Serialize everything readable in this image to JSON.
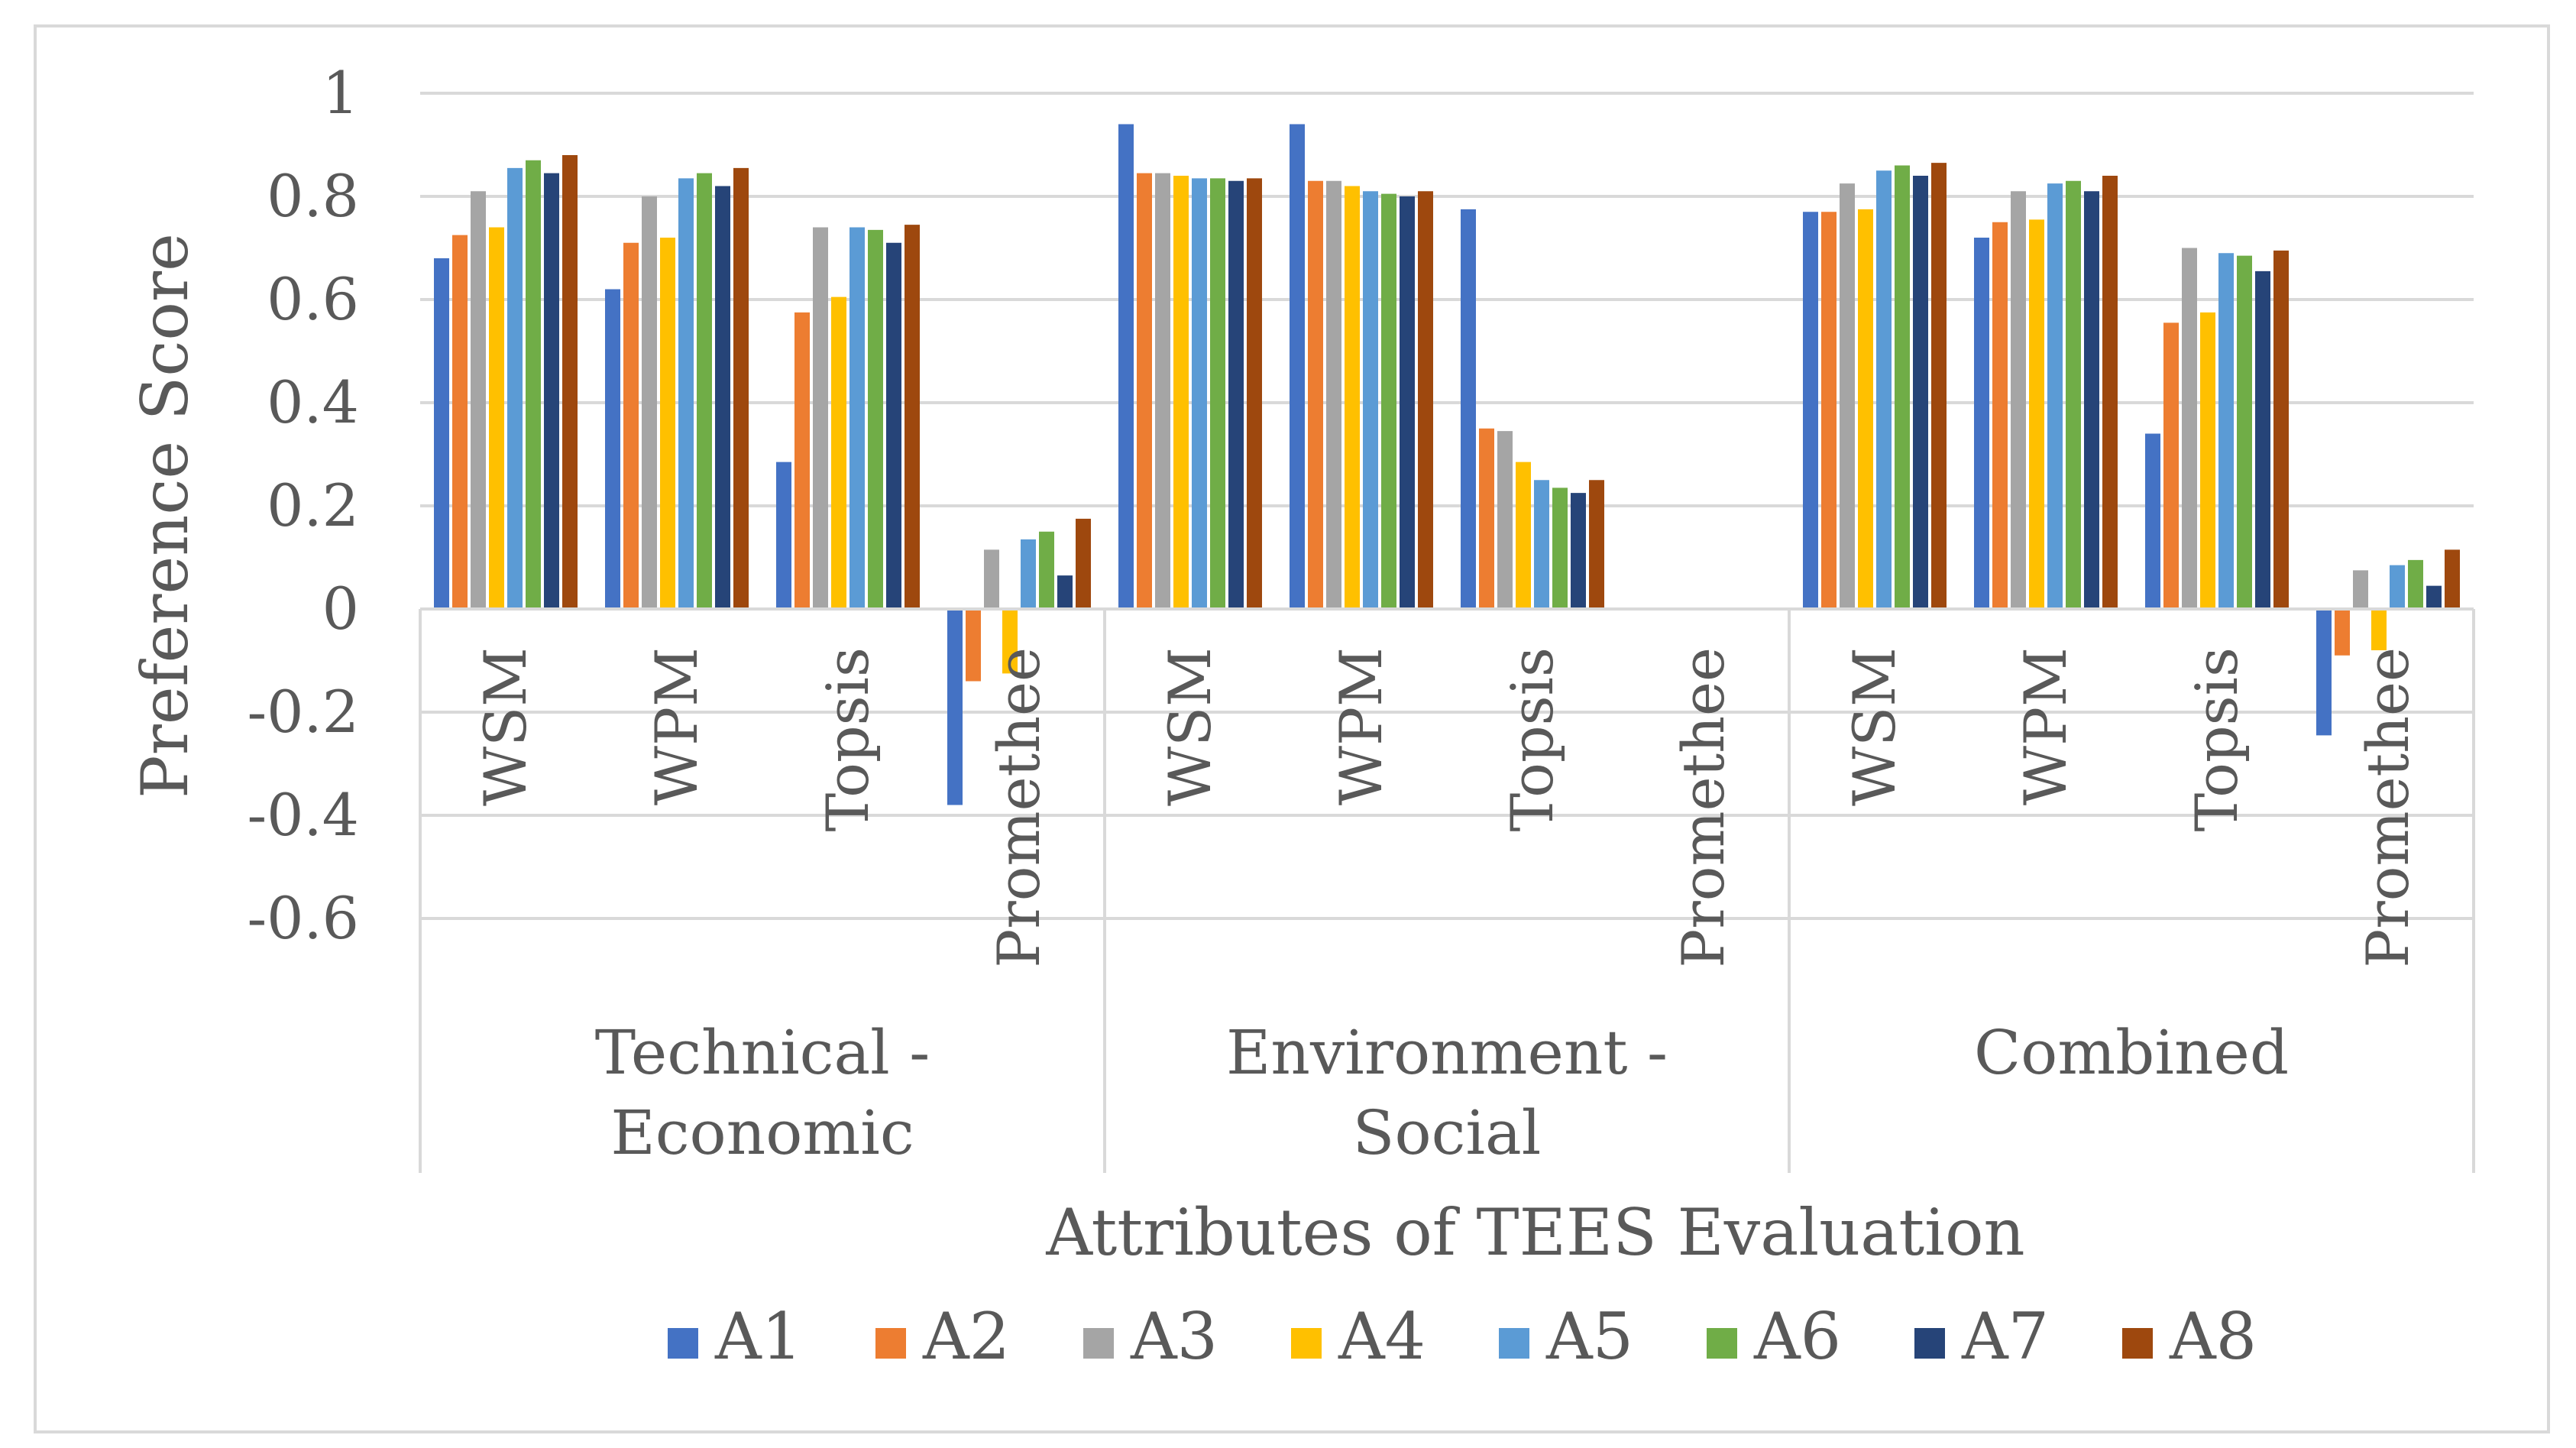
{
  "chart_data": {
    "type": "bar",
    "title": "",
    "xlabel": "Attributes of TEES Evaluation",
    "ylabel": "Preference Score",
    "ylim": [
      -0.6,
      1
    ],
    "yticks": [
      "1",
      "0.8",
      "0.6",
      "0.4",
      "0.2",
      "0",
      "-0.2",
      "-0.4",
      "-0.6"
    ],
    "ytick_values": [
      1,
      0.8,
      0.6,
      0.4,
      0.2,
      0,
      -0.2,
      -0.4,
      -0.6
    ],
    "grid": true,
    "legend_position": "bottom",
    "groups": [
      {
        "label": "Technical -\nEconomic",
        "categories": [
          "WSM",
          "WPM",
          "Topsis",
          "Promethee"
        ]
      },
      {
        "label": "Environment -\nSocial",
        "categories": [
          "WSM",
          "WPM",
          "Topsis",
          "Promethee"
        ]
      },
      {
        "label": "Combined",
        "categories": [
          "WSM",
          "WPM",
          "Topsis",
          "Promethee"
        ]
      }
    ],
    "series": [
      {
        "name": "A1",
        "color": "#4472C4",
        "values": [
          0.68,
          0.62,
          0.285,
          -0.38,
          0.94,
          0.94,
          0.775,
          0,
          0.77,
          0.72,
          0.34,
          -0.245
        ]
      },
      {
        "name": "A2",
        "color": "#ED7D31",
        "values": [
          0.725,
          0.71,
          0.575,
          -0.14,
          0.845,
          0.83,
          0.35,
          0,
          0.77,
          0.75,
          0.555,
          -0.09
        ]
      },
      {
        "name": "A3",
        "color": "#A5A5A5",
        "values": [
          0.81,
          0.8,
          0.74,
          0.115,
          0.845,
          0.83,
          0.345,
          0,
          0.825,
          0.81,
          0.7,
          0.075
        ]
      },
      {
        "name": "A4",
        "color": "#FFC000",
        "values": [
          0.74,
          0.72,
          0.605,
          -0.125,
          0.84,
          0.82,
          0.285,
          0,
          0.775,
          0.755,
          0.575,
          -0.08
        ]
      },
      {
        "name": "A5",
        "color": "#5B9BD5",
        "values": [
          0.855,
          0.835,
          0.74,
          0.135,
          0.835,
          0.81,
          0.25,
          0,
          0.85,
          0.825,
          0.69,
          0.085
        ]
      },
      {
        "name": "A6",
        "color": "#70AD47",
        "values": [
          0.87,
          0.845,
          0.735,
          0.15,
          0.835,
          0.805,
          0.235,
          0,
          0.86,
          0.83,
          0.685,
          0.095
        ]
      },
      {
        "name": "A7",
        "color": "#264478",
        "values": [
          0.845,
          0.82,
          0.71,
          0.065,
          0.83,
          0.8,
          0.225,
          0,
          0.84,
          0.81,
          0.655,
          0.045
        ]
      },
      {
        "name": "A8",
        "color": "#9E480E",
        "values": [
          0.88,
          0.855,
          0.745,
          0.175,
          0.835,
          0.81,
          0.25,
          0,
          0.865,
          0.84,
          0.695,
          0.115
        ]
      }
    ]
  },
  "colors": {
    "gridline": "#D9D9D9",
    "text": "#595959",
    "border": "#D9D9D9"
  }
}
